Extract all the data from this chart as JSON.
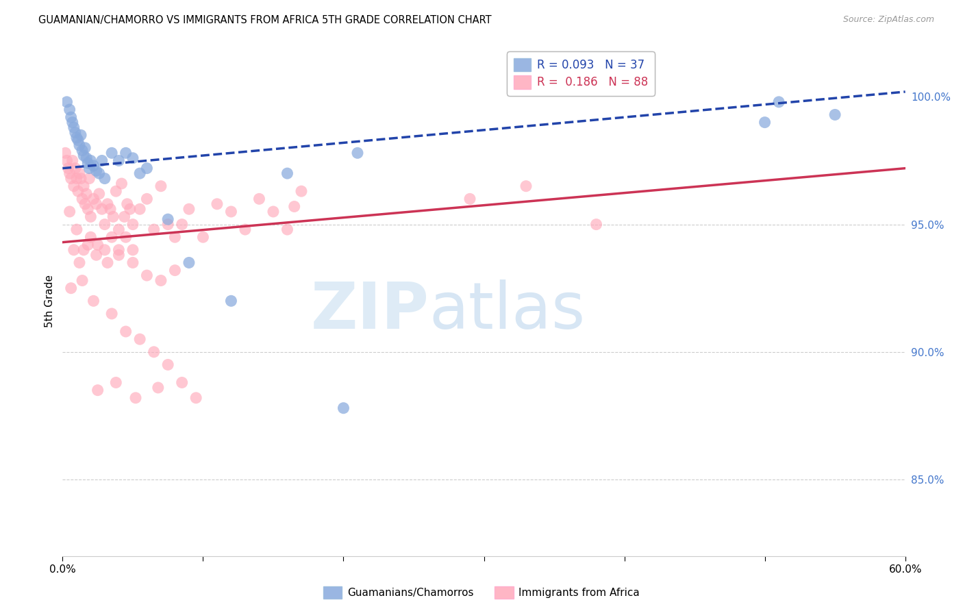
{
  "title": "GUAMANIAN/CHAMORRO VS IMMIGRANTS FROM AFRICA 5TH GRADE CORRELATION CHART",
  "source": "Source: ZipAtlas.com",
  "ylabel": "5th Grade",
  "legend_blue_r": "0.093",
  "legend_blue_n": "37",
  "legend_pink_r": "0.186",
  "legend_pink_n": "88",
  "legend_blue_label": "Guamanians/Chamorros",
  "legend_pink_label": "Immigrants from Africa",
  "blue_color": "#88aadd",
  "pink_color": "#ffaabb",
  "blue_line_color": "#2244aa",
  "pink_line_color": "#cc3355",
  "right_tick_color": "#4477cc",
  "xlim": [
    0.0,
    0.6
  ],
  "ylim": [
    0.82,
    1.02
  ],
  "right_yticks": [
    1.0,
    0.95,
    0.9,
    0.85
  ],
  "right_yticklabels": [
    "100.0%",
    "95.0%",
    "90.0%",
    "85.0%"
  ],
  "blue_line_x0": 0.0,
  "blue_line_y0": 0.972,
  "blue_line_x1": 0.6,
  "blue_line_y1": 1.002,
  "pink_line_x0": 0.0,
  "pink_line_y0": 0.943,
  "pink_line_x1": 0.6,
  "pink_line_y1": 0.972,
  "blue_scatter_x": [
    0.003,
    0.005,
    0.006,
    0.007,
    0.008,
    0.009,
    0.01,
    0.011,
    0.012,
    0.013,
    0.014,
    0.015,
    0.016,
    0.017,
    0.018,
    0.019,
    0.02,
    0.022,
    0.024,
    0.026,
    0.028,
    0.03,
    0.035,
    0.04,
    0.045,
    0.05,
    0.055,
    0.06,
    0.075,
    0.09,
    0.12,
    0.16,
    0.2,
    0.21,
    0.5,
    0.51,
    0.55
  ],
  "blue_scatter_y": [
    0.998,
    0.995,
    0.992,
    0.99,
    0.988,
    0.986,
    0.984,
    0.983,
    0.981,
    0.985,
    0.979,
    0.977,
    0.98,
    0.976,
    0.974,
    0.972,
    0.975,
    0.973,
    0.971,
    0.97,
    0.975,
    0.968,
    0.978,
    0.975,
    0.978,
    0.976,
    0.97,
    0.972,
    0.952,
    0.935,
    0.92,
    0.97,
    0.878,
    0.978,
    0.99,
    0.998,
    0.993
  ],
  "pink_scatter_x": [
    0.002,
    0.003,
    0.004,
    0.005,
    0.006,
    0.007,
    0.008,
    0.009,
    0.01,
    0.011,
    0.012,
    0.013,
    0.014,
    0.015,
    0.016,
    0.017,
    0.018,
    0.019,
    0.02,
    0.022,
    0.024,
    0.026,
    0.028,
    0.03,
    0.032,
    0.034,
    0.036,
    0.038,
    0.04,
    0.042,
    0.044,
    0.046,
    0.048,
    0.05,
    0.055,
    0.06,
    0.065,
    0.07,
    0.075,
    0.08,
    0.085,
    0.09,
    0.1,
    0.11,
    0.12,
    0.13,
    0.14,
    0.15,
    0.16,
    0.17,
    0.005,
    0.01,
    0.015,
    0.02,
    0.025,
    0.03,
    0.035,
    0.04,
    0.045,
    0.05,
    0.008,
    0.012,
    0.018,
    0.024,
    0.032,
    0.04,
    0.05,
    0.06,
    0.07,
    0.08,
    0.006,
    0.014,
    0.022,
    0.035,
    0.045,
    0.055,
    0.065,
    0.075,
    0.085,
    0.095,
    0.025,
    0.038,
    0.052,
    0.068,
    0.165,
    0.29,
    0.33,
    0.38
  ],
  "pink_scatter_y": [
    0.978,
    0.975,
    0.972,
    0.97,
    0.968,
    0.975,
    0.965,
    0.972,
    0.968,
    0.963,
    0.97,
    0.968,
    0.96,
    0.965,
    0.958,
    0.962,
    0.956,
    0.968,
    0.953,
    0.96,
    0.958,
    0.962,
    0.956,
    0.95,
    0.958,
    0.956,
    0.953,
    0.963,
    0.948,
    0.966,
    0.953,
    0.958,
    0.956,
    0.95,
    0.956,
    0.96,
    0.948,
    0.965,
    0.95,
    0.945,
    0.95,
    0.956,
    0.945,
    0.958,
    0.955,
    0.948,
    0.96,
    0.955,
    0.948,
    0.963,
    0.955,
    0.948,
    0.94,
    0.945,
    0.942,
    0.94,
    0.945,
    0.938,
    0.945,
    0.94,
    0.94,
    0.935,
    0.942,
    0.938,
    0.935,
    0.94,
    0.935,
    0.93,
    0.928,
    0.932,
    0.925,
    0.928,
    0.92,
    0.915,
    0.908,
    0.905,
    0.9,
    0.895,
    0.888,
    0.882,
    0.885,
    0.888,
    0.882,
    0.886,
    0.957,
    0.96,
    0.965,
    0.95
  ]
}
